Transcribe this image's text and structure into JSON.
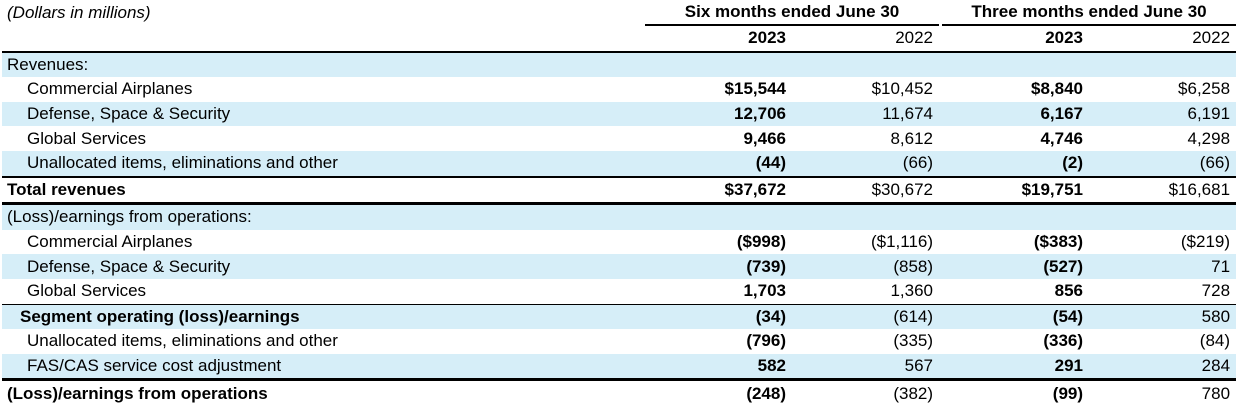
{
  "header": {
    "units": "(Dollars in millions)",
    "group1": "Six months ended June 30",
    "group2": "Three months ended June 30",
    "years": [
      "2023",
      "2022",
      "2023",
      "2022"
    ]
  },
  "sections": {
    "revenues_label": "Revenues:",
    "earnings_label": "(Loss)/earnings from operations:"
  },
  "rows": {
    "rev_ca": {
      "label": "Commercial Airplanes",
      "v": [
        "$15,544",
        "$10,452",
        "$8,840",
        "$6,258"
      ]
    },
    "rev_dss": {
      "label": "Defense, Space & Security",
      "v": [
        "12,706",
        "11,674",
        "6,167",
        "6,191"
      ]
    },
    "rev_gs": {
      "label": "Global Services",
      "v": [
        "9,466",
        "8,612",
        "4,746",
        "4,298"
      ]
    },
    "rev_un": {
      "label": "Unallocated items, eliminations and other",
      "v": [
        "(44)",
        "(66)",
        "(2)",
        "(66)"
      ]
    },
    "rev_total": {
      "label": "Total revenues",
      "v": [
        "$37,672",
        "$30,672",
        "$19,751",
        "$16,681"
      ]
    },
    "op_ca": {
      "label": "Commercial Airplanes",
      "v": [
        "($998)",
        "($1,116)",
        "($383)",
        "($219)"
      ]
    },
    "op_dss": {
      "label": "Defense, Space & Security",
      "v": [
        "(739)",
        "(858)",
        "(527)",
        "71"
      ]
    },
    "op_gs": {
      "label": "Global Services",
      "v": [
        "1,703",
        "1,360",
        "856",
        "728"
      ]
    },
    "op_seg": {
      "label": "Segment operating (loss)/earnings",
      "v": [
        "(34)",
        "(614)",
        "(54)",
        "580"
      ]
    },
    "op_un": {
      "label": "Unallocated items, eliminations and other",
      "v": [
        "(796)",
        "(335)",
        "(336)",
        "(84)"
      ]
    },
    "op_fas": {
      "label": "FAS/CAS service cost adjustment",
      "v": [
        "582",
        "567",
        "291",
        "284"
      ]
    },
    "op_total": {
      "label": "(Loss)/earnings from operations",
      "v": [
        "(248)",
        "(382)",
        "(99)",
        "780"
      ]
    }
  },
  "colors": {
    "row_shade": "#d6eef8"
  }
}
